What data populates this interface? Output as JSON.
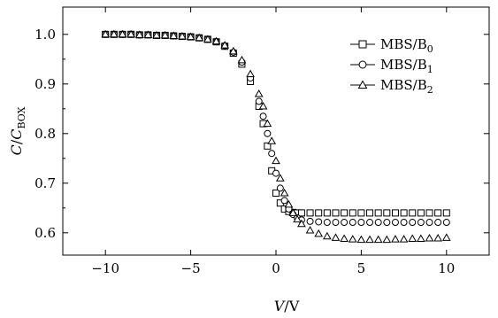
{
  "chart_data": {
    "type": "scatter",
    "xlabel": {
      "main": "V",
      "sep": "/",
      "unit": "V"
    },
    "ylabel": {
      "main": "C",
      "sep": "/",
      "sub": "C",
      "subscript": "BOX"
    },
    "xlim": [
      -12.5,
      12.5
    ],
    "ylim": [
      0.555,
      1.055
    ],
    "xticks": [
      -10,
      -5,
      0,
      5,
      10
    ],
    "xtick_labels": [
      "−10",
      "−5",
      "0",
      "5",
      "10"
    ],
    "yticks": [
      0.6,
      0.7,
      0.8,
      0.9,
      1.0
    ],
    "ytick_labels": [
      "0.6",
      "0.7",
      "0.8",
      "0.9",
      "1.0"
    ],
    "grid": false,
    "legend_position": "top-right",
    "x": [
      -10,
      -9.5,
      -9,
      -8.5,
      -8,
      -7.5,
      -7,
      -6.5,
      -6,
      -5.5,
      -5,
      -4.5,
      -4,
      -3.5,
      -3,
      -2.5,
      -2,
      -1.5,
      -1,
      -0.75,
      -0.5,
      -0.25,
      0,
      0.25,
      0.5,
      0.75,
      1,
      1.25,
      1.5,
      2,
      2.5,
      3,
      3.5,
      4,
      4.5,
      5,
      5.5,
      6,
      6.5,
      7,
      7.5,
      8,
      8.5,
      9,
      9.5,
      10
    ],
    "series": [
      {
        "name": "MBS/B",
        "subscript": "0",
        "marker": "square",
        "values": [
          1.0,
          1.0,
          1.0,
          1.0,
          0.999,
          0.999,
          0.998,
          0.998,
          0.997,
          0.996,
          0.995,
          0.993,
          0.99,
          0.985,
          0.976,
          0.962,
          0.94,
          0.905,
          0.855,
          0.82,
          0.775,
          0.725,
          0.68,
          0.66,
          0.648,
          0.643,
          0.641,
          0.64,
          0.64,
          0.64,
          0.64,
          0.64,
          0.64,
          0.64,
          0.64,
          0.64,
          0.64,
          0.64,
          0.64,
          0.64,
          0.64,
          0.64,
          0.64,
          0.64,
          0.64,
          0.64
        ]
      },
      {
        "name": "MBS/B",
        "subscript": "1",
        "marker": "circle",
        "values": [
          1.0,
          1.0,
          1.0,
          1.0,
          0.999,
          0.999,
          0.998,
          0.998,
          0.997,
          0.996,
          0.995,
          0.993,
          0.99,
          0.985,
          0.977,
          0.964,
          0.944,
          0.912,
          0.865,
          0.835,
          0.8,
          0.76,
          0.72,
          0.69,
          0.665,
          0.648,
          0.637,
          0.63,
          0.626,
          0.623,
          0.622,
          0.621,
          0.621,
          0.621,
          0.621,
          0.621,
          0.621,
          0.621,
          0.621,
          0.621,
          0.621,
          0.621,
          0.621,
          0.621,
          0.621,
          0.621
        ]
      },
      {
        "name": "MBS/B",
        "subscript": "2",
        "marker": "triangle",
        "values": [
          1.0,
          1.0,
          1.0,
          1.0,
          0.999,
          0.999,
          0.998,
          0.998,
          0.997,
          0.996,
          0.995,
          0.993,
          0.99,
          0.986,
          0.978,
          0.966,
          0.948,
          0.92,
          0.88,
          0.855,
          0.82,
          0.785,
          0.745,
          0.71,
          0.68,
          0.657,
          0.64,
          0.627,
          0.618,
          0.605,
          0.598,
          0.593,
          0.59,
          0.588,
          0.587,
          0.586,
          0.586,
          0.586,
          0.586,
          0.587,
          0.587,
          0.588,
          0.588,
          0.589,
          0.589,
          0.59
        ]
      }
    ]
  }
}
